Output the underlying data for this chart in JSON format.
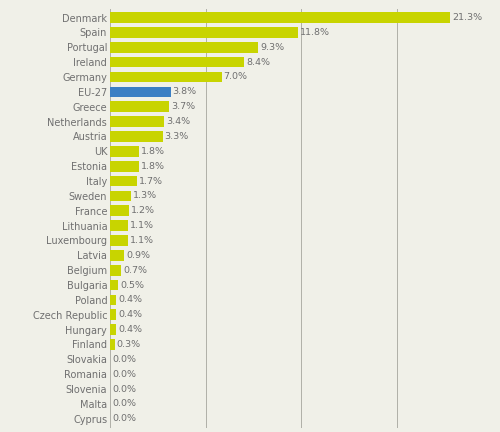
{
  "categories": [
    "Denmark",
    "Spain",
    "Portugal",
    "Ireland",
    "Germany",
    "EU-27",
    "Greece",
    "Netherlands",
    "Austria",
    "UK",
    "Estonia",
    "Italy",
    "Sweden",
    "France",
    "Lithuania",
    "Luxembourg",
    "Latvia",
    "Belgium",
    "Bulgaria",
    "Poland",
    "Czech Republic",
    "Hungary",
    "Finland",
    "Slovakia",
    "Romania",
    "Slovenia",
    "Malta",
    "Cyprus"
  ],
  "values": [
    21.3,
    11.8,
    9.3,
    8.4,
    7.0,
    3.8,
    3.7,
    3.4,
    3.3,
    1.8,
    1.8,
    1.7,
    1.3,
    1.2,
    1.1,
    1.1,
    0.9,
    0.7,
    0.5,
    0.4,
    0.4,
    0.4,
    0.3,
    0.0,
    0.0,
    0.0,
    0.0,
    0.0
  ],
  "bar_color_default": "#c8d400",
  "bar_color_eu27": "#3b7fc4",
  "eu27_index": 5,
  "background_color": "#f0f0e8",
  "grid_color": "#b0b0a8",
  "label_color": "#707070",
  "value_label_color": "#707070",
  "xlim": [
    0,
    23.5
  ],
  "grid_lines": [
    6,
    12,
    18
  ],
  "bar_height": 0.72,
  "figsize": [
    5.0,
    4.32
  ],
  "dpi": 100,
  "label_fontsize": 7.0,
  "value_fontsize": 6.8
}
